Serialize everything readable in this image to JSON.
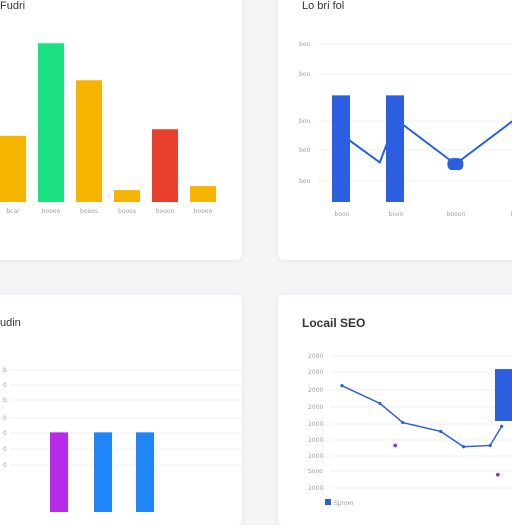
{
  "charts": [
    {
      "id": "top-left",
      "title": "Fudri",
      "chart_data": {
        "type": "bar",
        "categories": [
          "bcar",
          "boooo",
          "booos",
          "booos",
          "boooo",
          "boooo"
        ],
        "values": [
          50,
          120,
          92,
          9,
          55,
          12
        ],
        "colors": [
          "#f5b400",
          "#1be07f",
          "#f5b400",
          "#f5b400",
          "#e8402c",
          "#f5b400"
        ],
        "ylim": [
          0,
          130
        ],
        "grid": false
      }
    },
    {
      "id": "top-right",
      "title": "Lo bri fol",
      "chart_data": {
        "type": "bar+line",
        "categories": [
          "boon",
          "bcoo",
          "booon",
          "bocn"
        ],
        "yticks": [
          "boo",
          "boo",
          "boo",
          "bo0",
          "boo"
        ],
        "bars": [
          {
            "category": 0,
            "value": 62,
            "color": "#2b5fe0"
          },
          {
            "category": 1,
            "value": 62,
            "color": "#2b5fe0"
          }
        ],
        "line": {
          "x": [
            0,
            0.7,
            1,
            2.1,
            3.2
          ],
          "y": [
            39,
            23,
            48,
            22,
            48
          ],
          "color": "#2b5fe0"
        },
        "ylim": [
          0,
          100
        ],
        "grid": true
      }
    },
    {
      "id": "bottom-left",
      "title": "udin",
      "chart_data": {
        "type": "bar",
        "yticks": [
          "b",
          "0",
          "b",
          "0",
          "0",
          "0",
          "0"
        ],
        "bars": [
          {
            "value": 45,
            "color": "#b72be8"
          },
          {
            "value": 45,
            "color": "#2186f5"
          },
          {
            "value": 45,
            "color": "#2186f5"
          }
        ],
        "ylim": [
          0,
          100
        ],
        "grid": true
      }
    },
    {
      "id": "bottom-right",
      "title": "Locail SEO",
      "chart_data": {
        "type": "line+bar",
        "yticks": [
          "2000",
          "2000",
          "2000",
          "2000",
          "2000",
          "2000",
          "2000",
          "Sooo",
          "2000"
        ],
        "line": {
          "x": [
            0,
            1,
            1.6,
            2.6,
            3.2,
            3.9,
            4.2
          ],
          "y": [
            52,
            38,
            23,
            16,
            4,
            5,
            20
          ],
          "color": "#2b5fe0"
        },
        "points": [
          {
            "x": 1.4,
            "y": 5,
            "color": "#8b2be8"
          },
          {
            "x": 4.1,
            "y": -18,
            "color": "#8b2be8"
          }
        ],
        "bar": {
          "value": 65,
          "color": "#2b5fe0"
        },
        "legend": {
          "label": "Sprom",
          "color": "#2b5fe0"
        },
        "ylim": [
          -30,
          80
        ],
        "grid": true
      }
    }
  ]
}
